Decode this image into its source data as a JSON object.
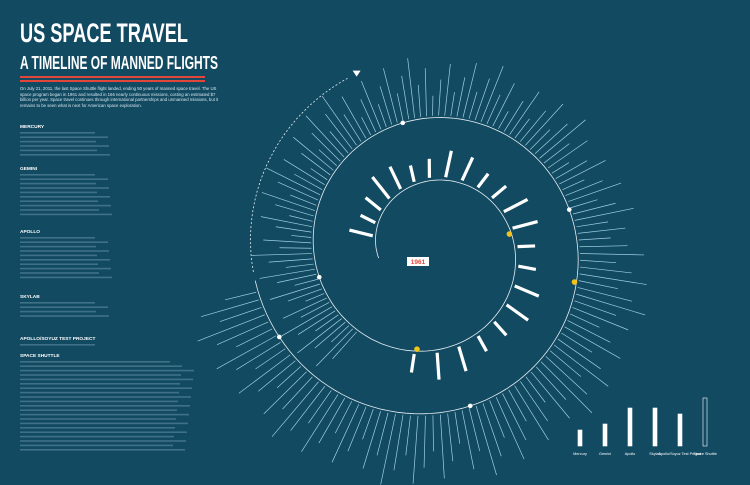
{
  "header": {
    "title": "US SPACE TRAVEL",
    "subtitle": "A TIMELINE OF MANNED FLIGHTS",
    "intro": "On July 21, 2011, the last Space Shuttle flight landed, ending 50 years of manned space travel. The US space program began in 1961 and resulted in 166 nearly continuous missions, costing an estimated $7 billion per year. Space travel continues through international partnerships and unmanned missions, but it remains to be seen what is next for American space exploration."
  },
  "sections": [
    "MERCURY",
    "GEMINI",
    "APOLLO",
    "SKYLAB",
    "APOLLO/SOYUZ TEST PROJECT",
    "SPACE SHUTTLE"
  ],
  "center_label": "1961",
  "legend": [
    "Mercury",
    "Gemini",
    "Apollo",
    "Skylab",
    "Apollo/Soyuz Test Project",
    "Space Shuttle"
  ]
}
